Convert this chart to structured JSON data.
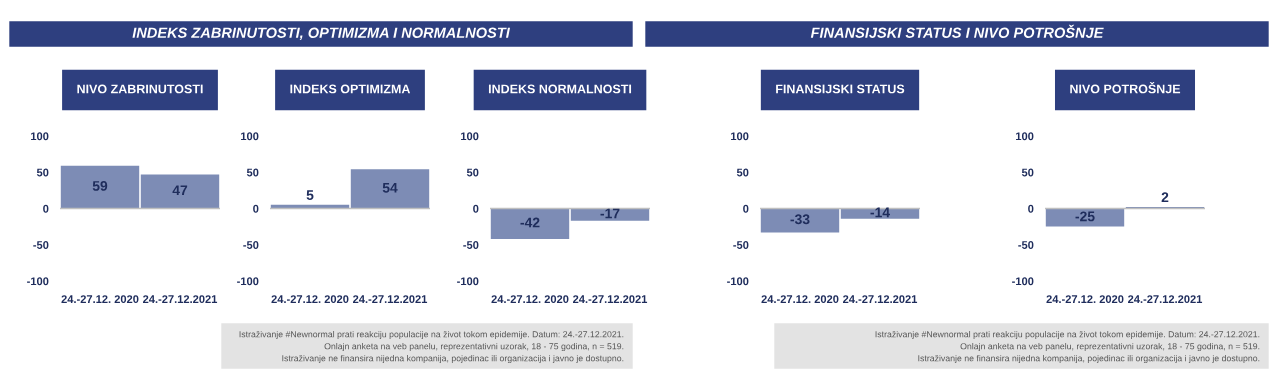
{
  "chart_data": [
    {
      "type": "bar",
      "subtitle": "INDEKS ZABRINUTOSTI, OPTIMIZMA I NORMALNOSTI",
      "title": "NIVO ZABRINUTOSTI",
      "categories": [
        "24.-27.12. 2020",
        "24.-27.12.2021"
      ],
      "values": [
        59,
        47
      ],
      "color": "#7d8cb5",
      "ylim": [
        -100,
        100
      ],
      "yticks": [
        -100,
        -50,
        0,
        50,
        100
      ],
      "data_labels": true,
      "ref_lines": [
        {
          "axis": "y",
          "value": 0,
          "color": "#bfbfbf"
        }
      ]
    },
    {
      "type": "bar",
      "title": "INDEKS OPTIMIZMA",
      "categories": [
        "24.-27.12. 2020",
        "24.-27.12.2021"
      ],
      "values": [
        5,
        54
      ],
      "color": "#7d8cb5",
      "ylim": [
        -100,
        100
      ],
      "yticks": [
        -100,
        -50,
        0,
        50,
        100
      ],
      "data_labels": true,
      "ref_lines": [
        {
          "axis": "y",
          "value": 0,
          "color": "#bfbfbf"
        }
      ]
    },
    {
      "type": "bar",
      "title": "INDEKS NORMALNOSTI",
      "categories": [
        "24.-27.12. 2020",
        "24.-27.12.2021"
      ],
      "values": [
        -42,
        -17
      ],
      "color": "#7d8cb5",
      "ylim": [
        -100,
        100
      ],
      "yticks": [
        -100,
        -50,
        0,
        50,
        100
      ],
      "data_labels": true,
      "ref_lines": [
        {
          "axis": "y",
          "value": 0,
          "color": "#bfbfbf"
        }
      ],
      "annotations": [
        "Istraživanje #Newnormal prati reakciju populacije na život tokom epidemije. Datum: 24.-27.12.2021.",
        "Onlajn anketa na veb panelu, reprezentativni uzorak, 18 - 75 godina, n = 519.",
        "Istraživanje ne finansira nijedna kompanija, pojedinac ili organizacija i javno je dostupno."
      ]
    },
    {
      "type": "bar",
      "subtitle": "FINANSIJSKI STATUS I NIVO POTROŠNJE",
      "title": "FINANSIJSKI STATUS",
      "categories": [
        "24.-27.12. 2020",
        "24.-27.12.2021"
      ],
      "values": [
        -33,
        -14
      ],
      "color": "#7d8cb5",
      "ylim": [
        -100,
        100
      ],
      "yticks": [
        -100,
        -50,
        0,
        50,
        100
      ],
      "data_labels": true,
      "ref_lines": [
        {
          "axis": "y",
          "value": 0,
          "color": "#bfbfbf"
        }
      ]
    },
    {
      "type": "bar",
      "title": "NIVO POTROŠNJE",
      "categories": [
        "24.-27.12. 2020",
        "24.-27.12.2021"
      ],
      "values": [
        -25,
        2
      ],
      "color": "#7d8cb5",
      "ylim": [
        -100,
        100
      ],
      "yticks": [
        -100,
        -50,
        0,
        50,
        100
      ],
      "data_labels": true,
      "ref_lines": [
        {
          "axis": "y",
          "value": 0,
          "color": "#bfbfbf"
        }
      ],
      "annotations": [
        "Istraživanje #Newnormal prati reakciju populacije na život tokom epidemije. Datum: 24.-27.12.2021.",
        "Onlajn anketa na veb panelu, reprezentativni uzorak, 18 - 75 godina, n = 519.",
        "Istraživanje ne finansira nijedna kompanija, pojedinac ili organizacija i javno je dostupno."
      ]
    }
  ]
}
